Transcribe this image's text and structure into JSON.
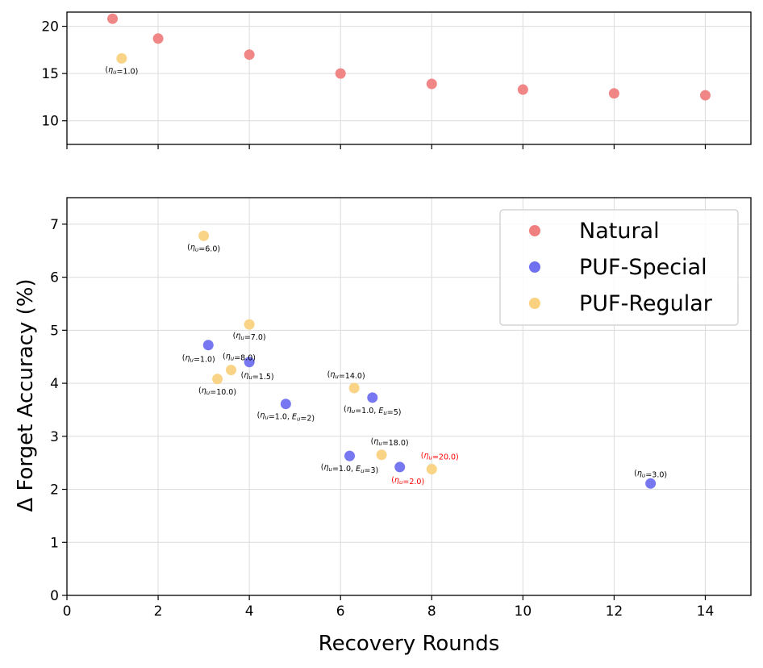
{
  "chart_data": {
    "type": "scatter",
    "xlabel": "Recovery Rounds",
    "ylabel": "Δ Forget Accuracy (%)",
    "xlim": [
      0,
      15
    ],
    "x_ticks": [
      "0",
      "2",
      "4",
      "6",
      "8",
      "10",
      "12",
      "14"
    ],
    "top_panel": {
      "ylim": [
        7.5,
        21.5
      ],
      "y_ticks": [
        "10",
        "15",
        "20"
      ]
    },
    "bottom_panel": {
      "ylim": [
        0,
        7.5
      ],
      "y_ticks": [
        "0",
        "1",
        "2",
        "3",
        "4",
        "5",
        "6",
        "7"
      ]
    },
    "legend": {
      "placement": "top-right",
      "entries": [
        "Natural",
        "PUF-Special",
        "PUF-Regular"
      ]
    },
    "colors": {
      "Natural": "#f08080",
      "PUF-Special": "#7070f0",
      "PUF-Regular": "#fad27f",
      "red_annotation": "#ff0000"
    },
    "series": [
      {
        "name": "Natural",
        "points": [
          {
            "x": 1,
            "y": 20.8,
            "label": ""
          },
          {
            "x": 2,
            "y": 18.7,
            "label": ""
          },
          {
            "x": 4,
            "y": 17.0,
            "label": ""
          },
          {
            "x": 6,
            "y": 15.0,
            "label": ""
          },
          {
            "x": 8,
            "y": 13.9,
            "label": ""
          },
          {
            "x": 10,
            "y": 13.3,
            "label": ""
          },
          {
            "x": 12,
            "y": 12.9,
            "label": ""
          },
          {
            "x": 14,
            "y": 12.7,
            "label": ""
          }
        ]
      },
      {
        "name": "PUF-Special",
        "points": [
          {
            "x": 3.1,
            "y": 4.72,
            "label": "(η_u=1.0)",
            "pos": "below-left"
          },
          {
            "x": 4.0,
            "y": 4.4,
            "label": "(η_u=1.5)",
            "pos": "below-right"
          },
          {
            "x": 4.8,
            "y": 3.61,
            "label": "(η_u=1.0, E_u=2)",
            "pos": "below"
          },
          {
            "x": 6.7,
            "y": 3.73,
            "label": "(η_u=1.0, E_u=5)",
            "pos": "below"
          },
          {
            "x": 6.2,
            "y": 2.63,
            "label": "(η_u=1.0, E_u=3)",
            "pos": "below"
          },
          {
            "x": 7.3,
            "y": 2.42,
            "label": "(η_u=2.0)",
            "pos": "below-right",
            "red": true
          },
          {
            "x": 12.8,
            "y": 2.11,
            "label": "(η_u=3.0)",
            "pos": "above"
          }
        ]
      },
      {
        "name": "PUF-Regular",
        "points": [
          {
            "x": 1.2,
            "y": 16.6,
            "label": "(η_u=1.0)",
            "pos": "below",
            "panel": "top"
          },
          {
            "x": 3.0,
            "y": 6.78,
            "label": "(η_u=6.0)",
            "pos": "below"
          },
          {
            "x": 4.0,
            "y": 5.11,
            "label": "(η_u=7.0)",
            "pos": "below"
          },
          {
            "x": 3.6,
            "y": 4.25,
            "label": "(η_u=8.0)",
            "pos": "above-right"
          },
          {
            "x": 3.3,
            "y": 4.08,
            "label": "(η_u=10.0)",
            "pos": "below"
          },
          {
            "x": 6.3,
            "y": 3.91,
            "label": "(η_u=14.0)",
            "pos": "above-left"
          },
          {
            "x": 6.9,
            "y": 2.65,
            "label": "(η_u=18.0)",
            "pos": "above-right"
          },
          {
            "x": 8.0,
            "y": 2.38,
            "label": "(η_u=20.0)",
            "pos": "above-right",
            "red": true
          }
        ]
      }
    ]
  }
}
